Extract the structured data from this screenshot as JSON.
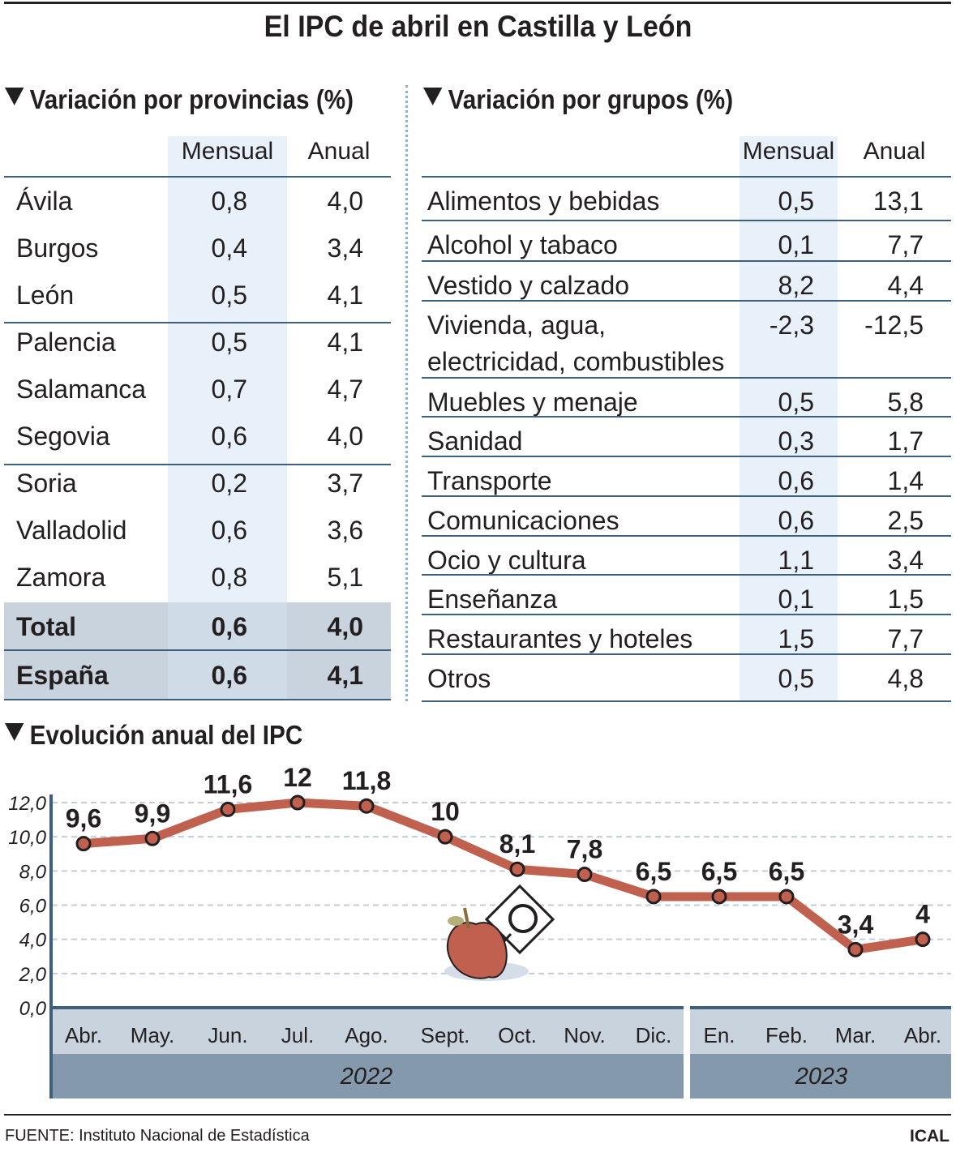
{
  "title": "El IPC de abril en Castilla y León",
  "provincias": {
    "heading": "Variación por provincias (%)",
    "columns": [
      "Mensual",
      "Anual"
    ],
    "rows": [
      {
        "name": "Ávila",
        "mensual": "0,8",
        "anual": "4,0"
      },
      {
        "name": "Burgos",
        "mensual": "0,4",
        "anual": "3,4"
      },
      {
        "name": "León",
        "mensual": "0,5",
        "anual": "4,1"
      },
      {
        "name": "Palencia",
        "mensual": "0,5",
        "anual": "4,1"
      },
      {
        "name": "Salamanca",
        "mensual": "0,7",
        "anual": "4,7"
      },
      {
        "name": "Segovia",
        "mensual": "0,6",
        "anual": "4,0"
      },
      {
        "name": "Soria",
        "mensual": "0,2",
        "anual": "3,7"
      },
      {
        "name": "Valladolid",
        "mensual": "0,6",
        "anual": "3,6"
      },
      {
        "name": "Zamora",
        "mensual": "0,8",
        "anual": "5,1"
      }
    ],
    "total": {
      "name": "Total",
      "mensual": "0,6",
      "anual": "4,0"
    },
    "espana": {
      "name": "España",
      "mensual": "0,6",
      "anual": "4,1"
    }
  },
  "grupos": {
    "heading": "Variación por grupos (%)",
    "columns": [
      "Mensual",
      "Anual"
    ],
    "rows": [
      {
        "name": "Alimentos y bebidas",
        "mensual": "0,5",
        "anual": "13,1"
      },
      {
        "name": "Alcohol y tabaco",
        "mensual": "0,1",
        "anual": "7,7"
      },
      {
        "name": "Vestido y calzado",
        "mensual": "8,2",
        "anual": "4,4"
      },
      {
        "name": "Vivienda, agua,",
        "name2": "electricidad, combustibles",
        "mensual": "-2,3",
        "anual": "-12,5"
      },
      {
        "name": "Muebles y menaje",
        "mensual": "0,5",
        "anual": "5,8"
      },
      {
        "name": "Sanidad",
        "mensual": "0,3",
        "anual": "1,7"
      },
      {
        "name": "Transporte",
        "mensual": "0,6",
        "anual": "1,4"
      },
      {
        "name": "Comunicaciones",
        "mensual": "0,6",
        "anual": "2,5"
      },
      {
        "name": "Ocio y cultura",
        "mensual": "1,1",
        "anual": "3,4"
      },
      {
        "name": "Enseñanza",
        "mensual": "0,1",
        "anual": "1,5"
      },
      {
        "name": "Restaurantes y hoteles",
        "mensual": "1,5",
        "anual": "7,7"
      },
      {
        "name": "Otros",
        "mensual": "0,5",
        "anual": "4,8"
      }
    ]
  },
  "chart_data": {
    "type": "line",
    "title": "Evolución anual del IPC",
    "categories": [
      "Abr.",
      "May.",
      "Jun.",
      "Jul.",
      "Ago.",
      "Sept.",
      "Oct.",
      "Nov.",
      "Dic.",
      "En.",
      "Feb.",
      "Mar.",
      "Abr."
    ],
    "years": [
      {
        "label": "2022",
        "months": 9
      },
      {
        "label": "2023",
        "months": 4
      }
    ],
    "values": [
      9.6,
      9.9,
      11.6,
      12,
      11.8,
      10,
      8.1,
      7.8,
      6.5,
      6.5,
      6.5,
      3.4,
      4
    ],
    "data_labels": [
      "9,6",
      "9,9",
      "11,6",
      "12",
      "11,8",
      "10",
      "8,1",
      "7,8",
      "6,5",
      "6,5",
      "6,5",
      "3,4",
      "4"
    ],
    "yticks": [
      "0,0",
      "2,0",
      "4,0",
      "6,0",
      "8,0",
      "10,0",
      "12,0"
    ],
    "ylim": [
      0,
      12
    ],
    "grid": true,
    "line_color": "#c0604e"
  },
  "footer": {
    "source": "FUENTE: Instituto Nacional de Estadística",
    "brand": "ICAL"
  },
  "colors": {
    "rule": "#3d5f80",
    "band": "#e8f0f9",
    "total_bg": "#c9d3dd",
    "year_band": "#8599ad"
  }
}
